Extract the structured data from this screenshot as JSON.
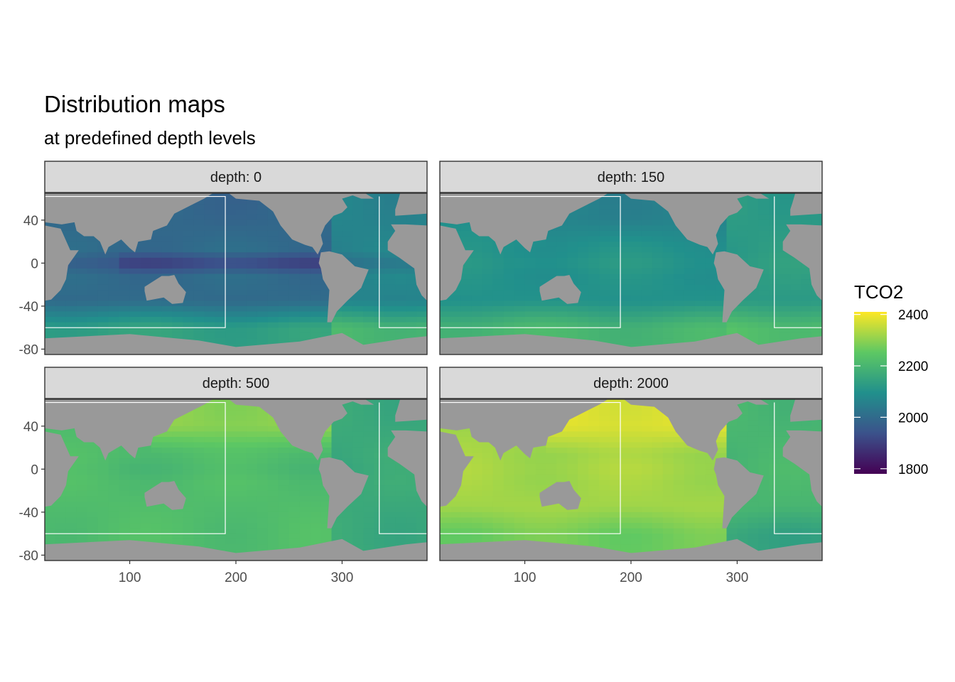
{
  "chart_data": {
    "type": "heatmap",
    "title": "Distribution maps",
    "subtitle": "at predefined depth levels",
    "xlabel": "",
    "ylabel": "",
    "xlim": [
      20,
      380
    ],
    "ylim": [
      -85,
      65
    ],
    "x_ticks": [
      100,
      200,
      300
    ],
    "y_ticks": [
      40,
      0,
      -40,
      -80
    ],
    "grid": false,
    "facets": [
      {
        "label": "depth: 0",
        "depth": 0,
        "typical_value": 2000,
        "north_pacific": 1990,
        "southern_ocean": 2140,
        "atlantic": 2080,
        "equatorial_min": 1840
      },
      {
        "label": "depth: 150",
        "depth": 150,
        "typical_value": 2100,
        "north_pacific": 2060,
        "southern_ocean": 2200,
        "atlantic": 2130,
        "equatorial_min": 2120
      },
      {
        "label": "depth: 500",
        "depth": 500,
        "typical_value": 2220,
        "north_pacific": 2300,
        "southern_ocean": 2220,
        "atlantic": 2150,
        "equatorial_min": 2200
      },
      {
        "label": "depth: 2000",
        "depth": 2000,
        "typical_value": 2320,
        "north_pacific": 2380,
        "southern_ocean": 2270,
        "atlantic": 2170,
        "equatorial_min": 2330
      }
    ],
    "legend": {
      "title": "TCO2",
      "position": "right",
      "range": [
        1780,
        2410
      ],
      "ticks": [
        2400,
        2200,
        2000,
        1800
      ],
      "colormap": [
        "#440154",
        "#3b528b",
        "#21908c",
        "#5dc863",
        "#fde725"
      ]
    },
    "colors": {
      "land": "#999999",
      "no_data": "#ffffff",
      "strip_fill": "#d9d9d9",
      "panel_border": "#333333"
    }
  }
}
